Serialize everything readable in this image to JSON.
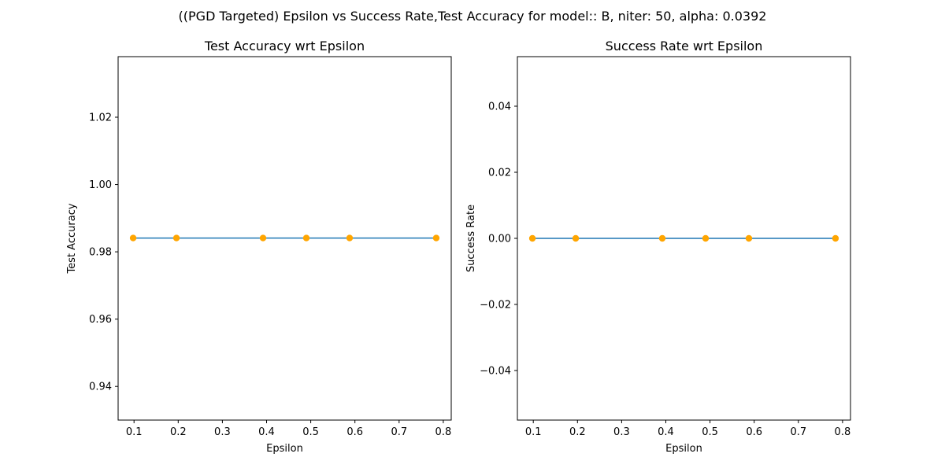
{
  "figure": {
    "suptitle": "((PGD Targeted) Epsilon vs Success Rate,Test Accuracy for model:: B, niter: 50, alpha:  0.0392"
  },
  "chart_data": [
    {
      "type": "line",
      "title": "Test Accuracy wrt Epsilon",
      "xlabel": "Epsilon",
      "ylabel": "Test Accuracy",
      "x": [
        0.098,
        0.196,
        0.392,
        0.49,
        0.588,
        0.784
      ],
      "series": [
        {
          "values": [
            0.9841,
            0.9841,
            0.9841,
            0.9841,
            0.9841,
            0.9841
          ]
        }
      ],
      "xlim": [
        0.064,
        0.818
      ],
      "ylim": [
        0.93,
        1.038
      ],
      "xticks": [
        0.1,
        0.2,
        0.3,
        0.4,
        0.5,
        0.6,
        0.7,
        0.8
      ],
      "xtick_labels": [
        "0.1",
        "0.2",
        "0.3",
        "0.4",
        "0.5",
        "0.6",
        "0.7",
        "0.8"
      ],
      "yticks": [
        0.94,
        0.96,
        0.98,
        1.0,
        1.02
      ],
      "ytick_labels": [
        "0.94",
        "0.96",
        "0.98",
        "1.00",
        "1.02"
      ],
      "line_color": "#1f77b4",
      "marker_color": "#ffa500",
      "grid": false
    },
    {
      "type": "line",
      "title": "Success Rate wrt Epsilon",
      "xlabel": "Epsilon",
      "ylabel": "Success Rate",
      "x": [
        0.098,
        0.196,
        0.392,
        0.49,
        0.588,
        0.784
      ],
      "series": [
        {
          "values": [
            0,
            0,
            0,
            0,
            0,
            0
          ]
        }
      ],
      "xlim": [
        0.064,
        0.818
      ],
      "ylim": [
        -0.055,
        0.055
      ],
      "xticks": [
        0.1,
        0.2,
        0.3,
        0.4,
        0.5,
        0.6,
        0.7,
        0.8
      ],
      "xtick_labels": [
        "0.1",
        "0.2",
        "0.3",
        "0.4",
        "0.5",
        "0.6",
        "0.7",
        "0.8"
      ],
      "yticks": [
        -0.04,
        -0.02,
        0.0,
        0.02,
        0.04
      ],
      "ytick_labels": [
        "−0.04",
        "−0.02",
        "0.00",
        "0.02",
        "0.04"
      ],
      "line_color": "#1f77b4",
      "marker_color": "#ffa500",
      "grid": false
    }
  ]
}
